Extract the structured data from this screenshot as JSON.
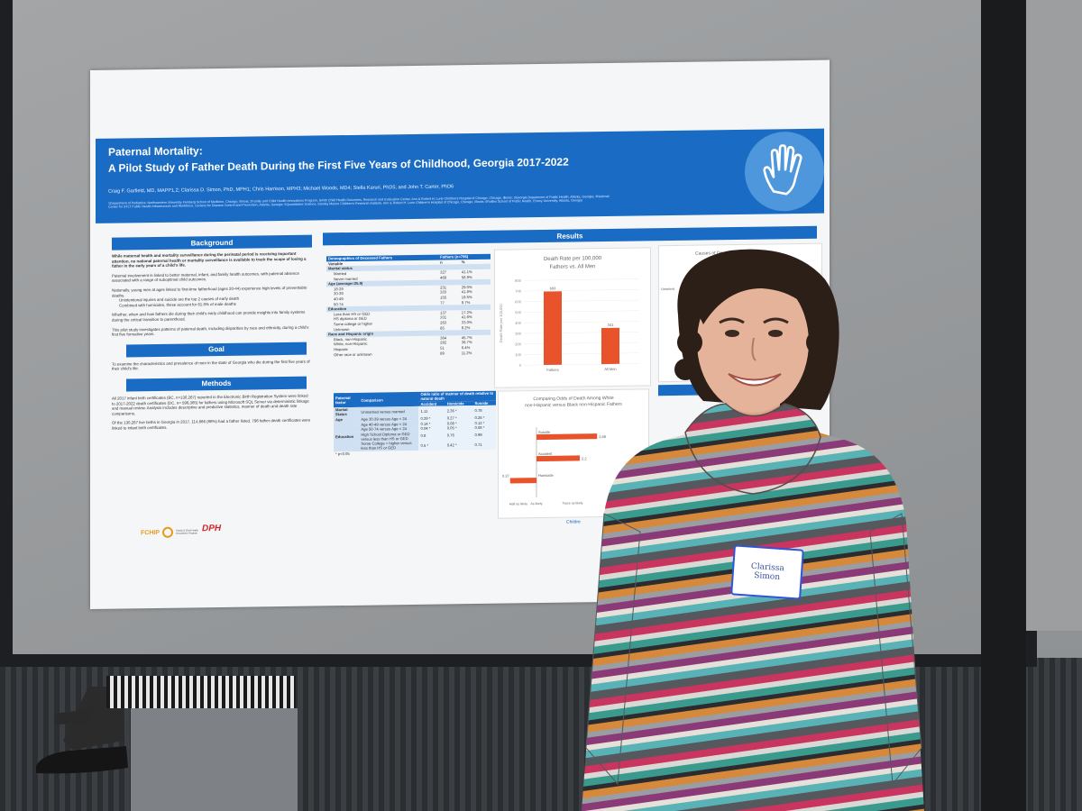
{
  "poster": {
    "title_line1": "Paternal Mortality:",
    "title_line2": "A Pilot Study of Father Death During the First Five Years of Childhood, Georgia 2017-2022",
    "authors": "Craig F. Garfield, MD, MAPP1,2; Clarissa D. Simon, PhD, MPH1; Chris Harrison, MPH3; Michael Woods, MD4; Stella Karuri, PhD5; and John T. Carter, PhD6",
    "affiliations": "1Department of Pediatrics, Northwestern University Feinberg School of Medicine, Chicago, Illinois; 2Family and Child Health Innovations Program, Smith Child Health Outcomes, Research and Evaluation Center, Ann & Robert H. Lurie Children's Hospital of Chicago, Chicago, Illinois; 3Georgia Department of Public Health, Atlanta, Georgia; 4National Center for STLT Public Health Infrastructure and Workforce, Centers for Disease Control and Prevention, Atlanta, Georgia; 5Quantitative Science, Stanley Manne Children's Research Institute, Ann & Robert H. Lurie Children's Hospital of Chicago, Chicago, Illinois; 6Rollins School of Public Health, Emory University, Atlanta, Georgia",
    "background_heading": "Background",
    "background_bold": "While maternal health and mortality surveillance during the perinatal period is receiving important attention, no national paternal health or mortality surveillance is available to track the scope of losing a father in the early years of a child's life.",
    "background_p1": "Paternal involvement is linked to better maternal, infant, and family health outcomes, with paternal absence associated with a range of suboptimal child outcomes.",
    "background_p2": "Nationally, young men at ages linked to first-time fatherhood (ages 20-44) experience high levels of preventable deaths.",
    "background_b1": "Unintentional injuries and suicide are the top 2 causes of early death",
    "background_b2": "Combined with homicides, these account for 61.8% of male deaths",
    "background_p3": "Whether, when and how fathers die during their child's early childhood can provide insights into family systems during the critical transition to parenthood.",
    "background_p4": "This pilot study investigates patterns of paternal death, including disparities by race and ethnicity, during a child's first five formative years.",
    "goal_heading": "Goal",
    "goal_text": "To examine the characteristics and prevalence of men in the state of Georgia who die during the first five years of their child's life.",
    "methods_heading": "Methods",
    "methods_p1": "All 2017 infant birth certificates (BC, n=130,267) reported in the Electronic Birth Registration System were linked to 2017-2022 death certificates (DC, n= 596,385) for fathers using Microsoft SQL Server via deterministic linkage and manual review. Analysis includes descriptive and predictive statistics, manner of death and death rate comparisons.",
    "methods_p2": "Of the 130,267 live births in Georgia in 2017, 114,866 (88%) had a father listed. 796 father death certificates were linked to infant birth certificates.",
    "logo_fchip": "FCHIP",
    "logo_fchip_sub": "Family & Child Health Innovations Program",
    "logo_dph": "DPH",
    "results_heading": "Results",
    "demo_table": {
      "col1": "Demographics of Deceased Fathers",
      "col2": "Fathers (n=796)",
      "subhead": [
        "Variable",
        "n",
        "%"
      ],
      "groups": [
        {
          "label": "Marital status",
          "rows": [
            [
              "Married",
              "327",
              "41.1%"
            ],
            [
              "Never married",
              "469",
              "58.9%"
            ]
          ]
        },
        {
          "label": "Age (average=35.9)",
          "rows": [
            [
              "18-29",
              "231",
              "29.0%"
            ],
            [
              "30-39",
              "333",
              "41.8%"
            ],
            [
              "40-49",
              "155",
              "19.5%"
            ],
            [
              "50-74",
              "77",
              "9.7%"
            ]
          ]
        },
        {
          "label": "Education",
          "rows": [
            [
              "Less than HS or GED",
              "137",
              "17.2%"
            ],
            [
              "HS diploma or GED",
              "331",
              "41.6%"
            ],
            [
              "Some college or higher",
              "263",
              "33.0%"
            ],
            [
              "Unknown",
              "65",
              "8.2%"
            ]
          ]
        },
        {
          "label": "Race and Hispanic origin",
          "rows": [
            [
              "Black, non-Hispanic",
              "364",
              "45.7%"
            ],
            [
              "White, non-Hispanic",
              "292",
              "36.7%"
            ],
            [
              "Hispanic",
              "51",
              "6.4%"
            ],
            [
              "Other race or unknown",
              "89",
              "11.2%"
            ]
          ]
        }
      ]
    },
    "odds_table": {
      "head": [
        "Paternal factor",
        "Comparison",
        "Odds ratio of manner of death relative to natural death"
      ],
      "subhead": [
        "Accident",
        "Homicide",
        "Suicide"
      ],
      "rows": [
        [
          "Marital Status",
          "Unmarried versus married",
          "1.11",
          "2.36 *",
          "0.78"
        ],
        [
          "Age",
          "Age 30-39 versus Age < 24",
          "0.29 *",
          "0.27 *",
          "0.26 *"
        ],
        [
          "",
          "Age 40-49 versus Age < 24",
          "0.14 *",
          "0.08 *",
          "0.12 *"
        ],
        [
          "",
          "Age 50-74 versus Age < 24",
          "0.04 *",
          "0.05 *",
          "0.08 *"
        ],
        [
          "Education",
          "High School Diploma or GED versus less than HS or GED",
          "0.8",
          "0.76",
          "0.99"
        ],
        [
          "",
          "Some College + higher versus less than HS or GED",
          "0.5 *",
          "0.42 *",
          "0.71"
        ]
      ],
      "footnote": "* p<0.05"
    },
    "causes_title": "Causes of Death fo",
    "causes_label": "Unintent",
    "odds_chart_title": "Comparing Odds of Death Among White non-Hispanic versus Black non-Hispanic Fathers",
    "partial_footer": "Childre",
    "findings_fragment": "Findings..."
  },
  "chart_data": [
    {
      "type": "bar",
      "title": "Death Rate per 100,000",
      "subtitle": "Fathers vs. All Men",
      "ylabel": "Death Rate per 100,000",
      "categories": [
        "Fathers",
        "All Men"
      ],
      "values": [
        693,
        341
      ],
      "ylim": [
        0,
        800
      ],
      "yticks": [
        "0",
        "100",
        "200",
        "300",
        "400",
        "500",
        "600",
        "700",
        "800"
      ],
      "data_labels": [
        "693",
        "341"
      ],
      "color": "#e8532b"
    },
    {
      "type": "bar",
      "title": "Comparing Odds of Death Among White non-Hispanic versus Black non-Hispanic Fathers",
      "orientation": "horizontal",
      "categories": [
        "Suicide",
        "Accident",
        "Homicide"
      ],
      "values": [
        2.68,
        2.2,
        0.27
      ],
      "data_labels": [
        "2.68",
        "",
        "0.27"
      ],
      "xtick_labels": [
        "Half as likely",
        "As likely",
        "Twice as likely"
      ],
      "color": "#e8532b"
    }
  ],
  "name_tag": {
    "line1": "Clarissa",
    "line2": "Simon"
  }
}
